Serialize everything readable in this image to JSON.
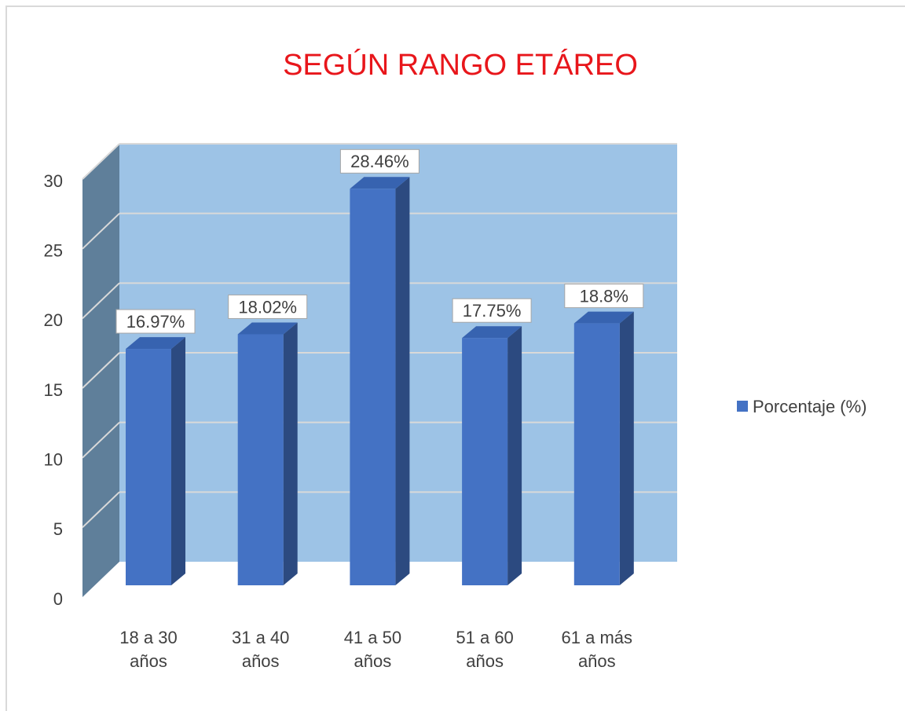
{
  "chart_data": {
    "type": "bar3d",
    "title": "SEGÚN RANGO ETÁREO",
    "categories": [
      "18 a 30 años",
      "31 a 40 años",
      "41 a 50 años",
      "51 a 60 años",
      "61 a más años"
    ],
    "series": [
      {
        "name": "Porcentaje (%)",
        "color": "#4472c4",
        "values": [
          16.97,
          18.02,
          28.46,
          17.75,
          18.8
        ],
        "value_labels": [
          "16.97%",
          "18.02%",
          "28.46%",
          "17.75%",
          "18.8%"
        ]
      }
    ],
    "ylim": [
      0,
      30
    ],
    "yticks": [
      0,
      5,
      10,
      15,
      20,
      25,
      30
    ],
    "grid": true,
    "legend": "right"
  }
}
